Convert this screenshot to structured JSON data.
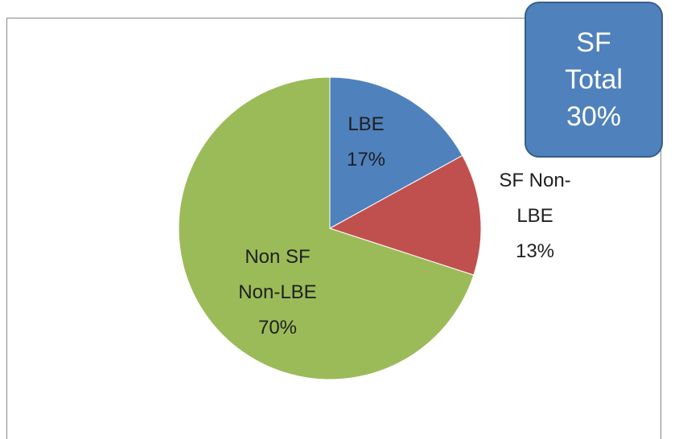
{
  "chart_data": {
    "type": "pie",
    "categories": [
      "LBE",
      "SF Non-LBE",
      "Non SF Non-LBE"
    ],
    "values": [
      17,
      13,
      70
    ],
    "value_labels": [
      "17%",
      "13%",
      "70%"
    ],
    "colors": [
      "#4f81bd",
      "#c0504d",
      "#9bbb59"
    ],
    "annotation": "SF Total 30%"
  }
}
